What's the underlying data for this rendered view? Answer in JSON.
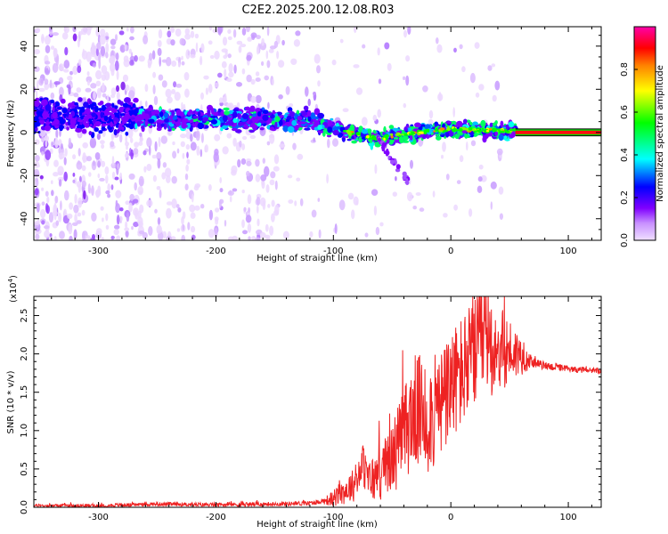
{
  "title": "C2E2.2025.200.12.08.R03",
  "chart_data": [
    {
      "type": "heatmap",
      "xlabel": "Height of straight line (km)",
      "ylabel": "Frequency (Hz)",
      "xlim": [
        -355,
        128
      ],
      "ylim": [
        -50,
        49
      ],
      "x_ticks": [
        -300,
        -200,
        -100,
        0,
        100
      ],
      "x_tick_labels": [
        "-300",
        "-200",
        "-100",
        "0",
        "100"
      ],
      "y_ticks": [
        -40,
        -20,
        0,
        20,
        40
      ],
      "y_tick_labels": [
        "-40",
        "-20",
        "0",
        "20",
        "40"
      ],
      "colorbar": {
        "label": "Normalized spectral amplitude",
        "range": [
          0,
          1
        ],
        "ticks": [
          0.0,
          0.2,
          0.4,
          0.6,
          0.8
        ],
        "tick_labels": [
          "0.0",
          "0.2",
          "0.4",
          "0.6",
          "0.8"
        ],
        "colormap": [
          "#f0e0ff",
          "#8000ff",
          "#0000ff",
          "#00ffff",
          "#00ff00",
          "#ffff00",
          "#ff8000",
          "#ff0000",
          "#ff00aa"
        ]
      },
      "ridge": [
        {
          "x": -355,
          "y": 8
        },
        {
          "x": -330,
          "y": 8
        },
        {
          "x": -300,
          "y": 7
        },
        {
          "x": -270,
          "y": 7
        },
        {
          "x": -240,
          "y": 6
        },
        {
          "x": -210,
          "y": 6
        },
        {
          "x": -180,
          "y": 6
        },
        {
          "x": -150,
          "y": 6
        },
        {
          "x": -120,
          "y": 5
        },
        {
          "x": -100,
          "y": 2
        },
        {
          "x": -80,
          "y": -1
        },
        {
          "x": -60,
          "y": -3
        },
        {
          "x": -45,
          "y": -1
        },
        {
          "x": -30,
          "y": 0
        },
        {
          "x": 0,
          "y": 1.5
        },
        {
          "x": 30,
          "y": 1
        },
        {
          "x": 55,
          "y": 0.5
        },
        {
          "x": 128,
          "y": 0
        }
      ],
      "tone_line": {
        "x_start": 55,
        "x_end": 128,
        "y": 0
      },
      "grid": false
    },
    {
      "type": "line",
      "xlabel": "Height of straight line (km)",
      "ylabel": "SNR (10 * v/v)",
      "y_multiplier": "(x10^4)",
      "y_multiplier_base": "(x10",
      "y_multiplier_exp": "4",
      "y_multiplier_close": ")",
      "xlim": [
        -355,
        128
      ],
      "ylim": [
        0,
        2.75
      ],
      "x_ticks": [
        -300,
        -200,
        -100,
        0,
        100
      ],
      "x_tick_labels": [
        "-300",
        "-200",
        "-100",
        "0",
        "100"
      ],
      "y_ticks": [
        0.0,
        0.5,
        1.0,
        1.5,
        2.0,
        2.5
      ],
      "y_tick_labels": [
        "0.0",
        "0.5",
        "1.0",
        "1.5",
        "2.0",
        "2.5"
      ],
      "series": [
        {
          "color": "#ee2222",
          "points": [
            {
              "x": -355,
              "y": 0.02
            },
            {
              "x": -300,
              "y": 0.02
            },
            {
              "x": -250,
              "y": 0.04
            },
            {
              "x": -200,
              "y": 0.03
            },
            {
              "x": -150,
              "y": 0.04
            },
            {
              "x": -120,
              "y": 0.05
            },
            {
              "x": -100,
              "y": 0.1
            },
            {
              "x": -90,
              "y": 0.2
            },
            {
              "x": -80,
              "y": 0.3
            },
            {
              "x": -75,
              "y": 0.55
            },
            {
              "x": -70,
              "y": 0.3
            },
            {
              "x": -60,
              "y": 0.4
            },
            {
              "x": -50,
              "y": 0.6
            },
            {
              "x": -40,
              "y": 0.9
            },
            {
              "x": -30,
              "y": 1.2
            },
            {
              "x": -20,
              "y": 1.1
            },
            {
              "x": -10,
              "y": 1.2
            },
            {
              "x": 0,
              "y": 1.5
            },
            {
              "x": 10,
              "y": 1.7
            },
            {
              "x": 20,
              "y": 1.9
            },
            {
              "x": 30,
              "y": 2.1
            },
            {
              "x": 40,
              "y": 2.0
            },
            {
              "x": 50,
              "y": 2.0
            },
            {
              "x": 60,
              "y": 1.95
            },
            {
              "x": 70,
              "y": 1.88
            },
            {
              "x": 80,
              "y": 1.84
            },
            {
              "x": 90,
              "y": 1.82
            },
            {
              "x": 100,
              "y": 1.8
            },
            {
              "x": 110,
              "y": 1.79
            },
            {
              "x": 128,
              "y": 1.77
            }
          ],
          "noise_amplitude": [
            {
              "x": -355,
              "a": 0.02
            },
            {
              "x": -110,
              "a": 0.03
            },
            {
              "x": -95,
              "a": 0.15
            },
            {
              "x": -60,
              "a": 0.35
            },
            {
              "x": -30,
              "a": 0.75
            },
            {
              "x": 0,
              "a": 0.75
            },
            {
              "x": 30,
              "a": 0.75
            },
            {
              "x": 55,
              "a": 0.35
            },
            {
              "x": 70,
              "a": 0.06
            },
            {
              "x": 128,
              "a": 0.03
            }
          ]
        }
      ]
    }
  ]
}
